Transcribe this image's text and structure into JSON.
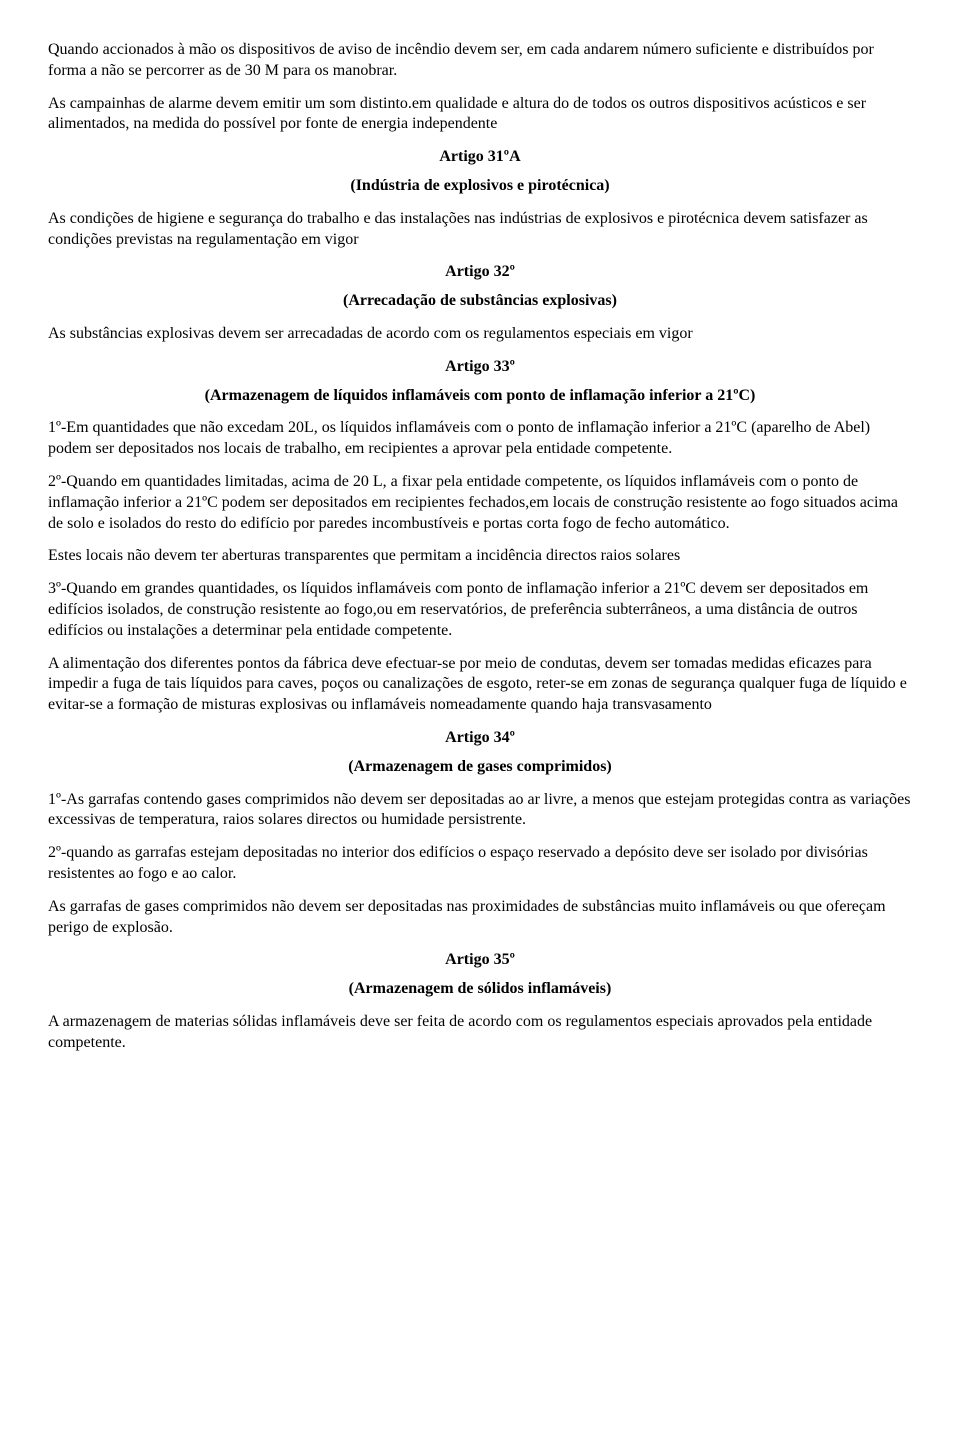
{
  "paragraphs": {
    "p1": "Quando accionados à mão os dispositivos de aviso de incêndio devem ser, em cada andarem número suficiente e distribuídos por forma a não se percorrer as de 30 M para os manobrar.",
    "p2": "As campainhas de alarme devem emitir um som distinto.em qualidade e altura do de todos os outros dispositivos acústicos e ser alimentados, na medida do possível por fonte de energia independente",
    "art31a_heading": "Artigo 31ºA",
    "art31a_subtitle": "(Indústria de explosivos e pirotécnica)",
    "p3": "As condições de higiene e segurança do trabalho e das instalações nas indústrias de explosivos e pirotécnica devem satisfazer as condições previstas na regulamentação em vigor",
    "art32_heading": "Artigo 32º",
    "art32_subtitle": "(Arrecadação de substâncias explosivas)",
    "p4": "As substâncias explosivas devem ser arrecadadas de acordo com os regulamentos especiais em vigor",
    "art33_heading": "Artigo 33º",
    "art33_subtitle": "(Armazenagem de líquidos inflamáveis com ponto de inflamação inferior a 21ºC)",
    "p5": "1º-Em quantidades que não excedam 20L, os líquidos inflamáveis com o ponto de inflamação inferior a 21ºC (aparelho de Abel) podem ser depositados nos locais de trabalho, em recipientes a aprovar pela entidade competente.",
    "p6": "2º-Quando em quantidades limitadas, acima de 20 L, a fixar pela entidade competente, os líquidos inflamáveis com o ponto de inflamação inferior a 21ºC podem ser depositados em recipientes fechados,em locais de construção resistente ao fogo situados acima de solo e isolados do resto do edifício por paredes incombustíveis e portas corta fogo de fecho automático.",
    "p7": "Estes locais não devem ter aberturas transparentes que permitam a incidência directos raios solares",
    "p8": "3º-Quando em grandes quantidades, os líquidos inflamáveis com ponto de inflamação inferior a 21ºC devem ser depositados em edifícios isolados, de construção resistente ao fogo,ou em reservatórios, de preferência subterrâneos, a uma distância de outros edifícios ou instalações a determinar pela entidade competente.",
    "p9": "A alimentação dos diferentes pontos da fábrica deve efectuar-se por meio de condutas, devem ser tomadas medidas eficazes para impedir a fuga de tais líquidos para caves, poços ou canalizações de esgoto, reter-se em zonas de segurança qualquer fuga de líquido e evitar-se a formação de misturas explosivas ou inflamáveis nomeadamente quando haja transvasamento",
    "art34_heading": "Artigo 34º",
    "art34_subtitle": "(Armazenagem de gases comprimidos)",
    "p10": "1º-As garrafas contendo gases comprimidos não devem ser depositadas ao ar livre, a menos que estejam protegidas contra as variações excessivas de temperatura, raios solares directos ou humidade persistrente.",
    "p11": "2º-quando as garrafas estejam depositadas no interior dos edifícios o espaço reservado a depósito deve ser isolado por divisórias resistentes ao fogo e ao calor.",
    "p12": "As garrafas de gases comprimidos não devem ser depositadas nas proximidades de substâncias muito inflamáveis ou que ofereçam perigo de explosão.",
    "art35_heading": "Artigo 35º",
    "art35_subtitle": "(Armazenagem de sólidos inflamáveis)",
    "p13": "A armazenagem de materias sólidas inflamáveis deve ser feita de acordo com os regulamentos especiais aprovados pela entidade competente."
  }
}
